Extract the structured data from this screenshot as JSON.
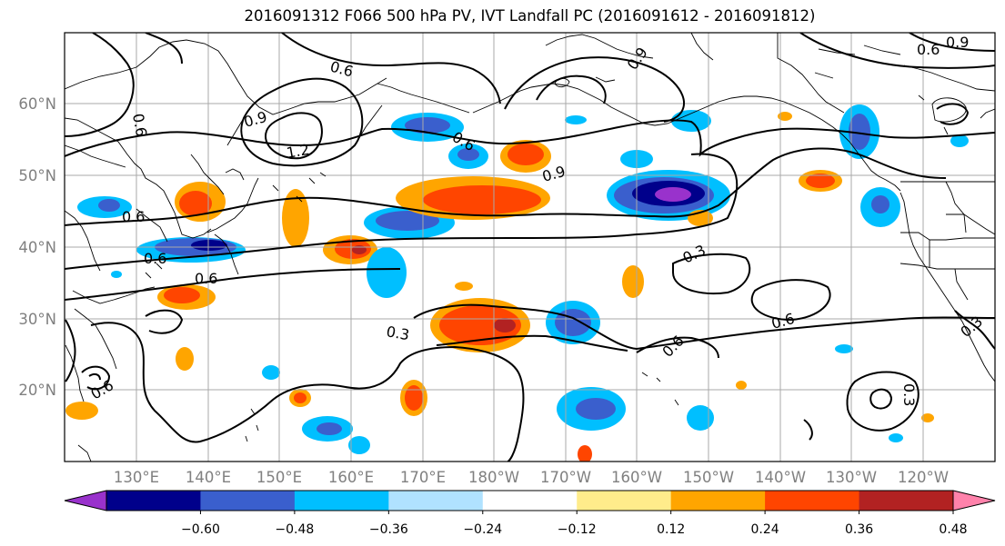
{
  "title": "2016091312 F066 500 hPa PV, IVT Landfall PC (2016091612 - 2016091812)",
  "lat_labels": [
    "60°N",
    "50°N",
    "40°N",
    "30°N",
    "20°N"
  ],
  "lon_labels": [
    "130°E",
    "140°E",
    "150°E",
    "160°E",
    "170°E",
    "180°W",
    "170°W",
    "160°W",
    "150°W",
    "140°W",
    "130°W",
    "120°W"
  ],
  "contour_labels": [
    "0.6",
    "0.9",
    "0.6",
    "0.9",
    "0.6",
    "1.2",
    "0.9",
    "0.6",
    "0.9",
    "0.6",
    "0.6",
    "0.6",
    "0.3",
    "0.3",
    "0.6",
    "0.6",
    "0.6",
    "0.3",
    "0.3"
  ],
  "colorbar": {
    "ticks": [
      "−0.60",
      "−0.48",
      "−0.36",
      "−0.24",
      "−0.12",
      "0.12",
      "0.24",
      "0.36",
      "0.48",
      "0.60"
    ],
    "colors": [
      "#9932CC",
      "#00008B",
      "#3A5FCD",
      "#00BFFF",
      "#B0E2FF",
      "#FFFFFF",
      "#FFEC8B",
      "#FFA500",
      "#FF4500",
      "#B22222",
      "#FF82AB"
    ]
  }
}
